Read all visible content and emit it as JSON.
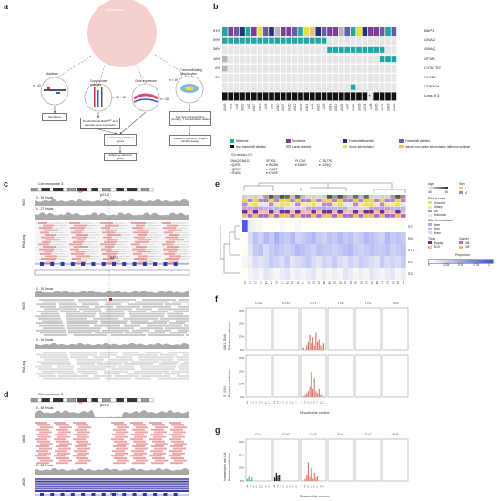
{
  "panels": [
    "a",
    "b",
    "c",
    "d",
    "e",
    "f",
    "g"
  ],
  "panel_a": {
    "circle_label": "Metastasis",
    "mutations": {
      "title": "Mutations",
      "n": "n = 32"
    },
    "cna": {
      "title": "Copy-number changes",
      "n": "n = 32 + 86"
    },
    "gene_expr": {
      "title": "Gene expression",
      "n": "n = 28"
    },
    "til": {
      "title": "Tumor-infiltrating lymphocytes",
      "n": "n = 19"
    },
    "signatures": "Signatures",
    "panel_box": "Pembrolizmab BAP1ᴹᵁᵀ and aberrant gene expression",
    "perturbed": "Consistently perturbed genes",
    "followup": "Follow up selected genes",
    "cell_type": "Cell type representation, clonality, T cell activation states",
    "validation": "Validation by FACS, antigen binding assays"
  },
  "panel_b": {
    "genes": [
      {
        "name": "BAP1",
        "pct": "91%"
      },
      {
        "name": "GNA11",
        "pct": "59%"
      },
      {
        "name": "GNAQ",
        "pct": "38%"
      },
      {
        "name": "SF3B1",
        "pct": "16%"
      },
      {
        "name": "CYSLTR2",
        "pct": "6%"
      },
      {
        "name": "PLCB4",
        "pct": "3%"
      },
      {
        "name": "CDKN2A",
        "pct": ""
      },
      {
        "name": "Loss of 3",
        "pct": ""
      }
    ],
    "samples": [
      "UM33",
      "UM1",
      "UM4",
      "UM22",
      "UM2",
      "UM17",
      "UM13",
      "UM5",
      "UM3",
      "UM10",
      "UM27",
      "UM20",
      "UM12",
      "UM32",
      "UM14",
      "UM6",
      "UM15",
      "UM9",
      "UM18",
      "UM19",
      "UM25",
      "UM7",
      "UM24",
      "UM26",
      "UM11",
      "UM8",
      "UM30",
      "UM21",
      "UM16",
      "UM23"
    ],
    "legend": [
      "Missense",
      "Nonsense",
      "Frameshift insertion",
      "Frameshift deletion",
      "Non-frameshift deletion",
      "Large deletion",
      "Splice-site mutation",
      "Intronic non-splice site mutation (affecting splicing)"
    ],
    "cn_note": "* CN neutral LOH",
    "variant_groups": [
      {
        "title": "GNAQ/GNA11:",
        "items": [
          "Q209L",
          "Q209P",
          "R183C"
        ]
      },
      {
        "title": "SF3B1:",
        "items": [
          "R625H",
          "K666T",
          "K700E"
        ]
      },
      {
        "title": "PLCB4:",
        "items": [
          "D630Y"
        ]
      },
      {
        "title": "CYSLTR2:",
        "items": [
          "L129Q"
        ]
      }
    ],
    "colors": {
      "missense": "#21a6a6",
      "nonsense": "#7b3f98",
      "fs_ins": "#23307a",
      "fs_del": "#6a5aa8",
      "large_del": "#b5b5b5",
      "splice": "#e1e33c",
      "intronic": "#f3c05a",
      "black": "#111111"
    }
  },
  "panel_c": {
    "chromosome": "Chromosome 3",
    "band": "p21.2",
    "tracks": [
      {
        "label": "WGS",
        "reads": "0 - 35 Reads"
      },
      {
        "label": "RNA-seq",
        "reads": "0 - 27 Reads"
      },
      {
        "label": "WGS",
        "reads": "0 - 20 Reads"
      },
      {
        "label": "RNA-seq",
        "reads": "0 - 16 Reads"
      }
    ],
    "gene": "BAP1"
  },
  "panel_d": {
    "chromosome": "Chromosome 3",
    "band": "p21.2",
    "tracks": [
      {
        "label": "UM26",
        "reads": "0 - 58 Reads"
      },
      {
        "label": "UM26",
        "reads": "0 - 48 Reads"
      }
    ],
    "gene": "BAP1"
  },
  "panel_e": {
    "legend": {
      "age_title": "Age",
      "age_range": [
        "45",
        "85"
      ],
      "sex_title": "Sex",
      "sex_items": [
        "F",
        "M"
      ],
      "part_title": "Part of uvea",
      "part_items": [
        "Choroid",
        "Ciliary",
        "Iris",
        "Unknown"
      ],
      "site_title": "Site of metastasis",
      "site_items": [
        "Liver",
        "Skin",
        "Brain"
      ],
      "type_title": "Type",
      "type_items": [
        "Biopsy",
        "PDX"
      ],
      "cancer_title": "Cancer",
      "cancer_items": [
        "UM",
        "CM"
      ],
      "prop_title": "Proportion",
      "prop_ticks": [
        "0",
        "0.25",
        "0.5",
        "0.75",
        "1"
      ]
    },
    "rows": [
      "S7",
      "S6",
      "S16",
      "S1",
      "S3"
    ],
    "columns": [
      "UM11",
      "UM9",
      "UM21",
      "UM3",
      "UM4",
      "UM7",
      "UM13",
      "UM17",
      "UM1",
      "UM14",
      "UM10",
      "UM27",
      "UM12",
      "UM16",
      "UM32",
      "UM8",
      "UM6",
      "UM15",
      "UM2",
      "UM20",
      "UM18",
      "UM26",
      "UM25",
      "UM24",
      "UM22",
      "UM5",
      "UM19",
      "UM23",
      "UM30",
      "UM33",
      "UM28"
    ]
  },
  "panel_f": {
    "categories": [
      "C>A",
      "C>G",
      "C>T",
      "T>A",
      "T>C",
      "T>G"
    ],
    "plots": [
      {
        "label": "UM11 DNA\nRelative contribution",
        "yticks": [
          "0%",
          "10%",
          "20%",
          "30%"
        ]
      },
      {
        "label": "S7 (UV)\nRelative contribution",
        "yticks": [
          "0%",
          "10%",
          "20%",
          "30%"
        ]
      }
    ],
    "xlabel": "Trinucleotide context"
  },
  "panel_g": {
    "categories": [
      "C>A",
      "C>G",
      "C>T",
      "T>A",
      "T>C",
      "T>G"
    ],
    "plot": {
      "label": "Independent mix UM\nRelative contribution",
      "yticks": [
        "0%",
        "10%",
        "20%",
        "30%"
      ]
    },
    "xlabel": "Trinucleotide context"
  }
}
